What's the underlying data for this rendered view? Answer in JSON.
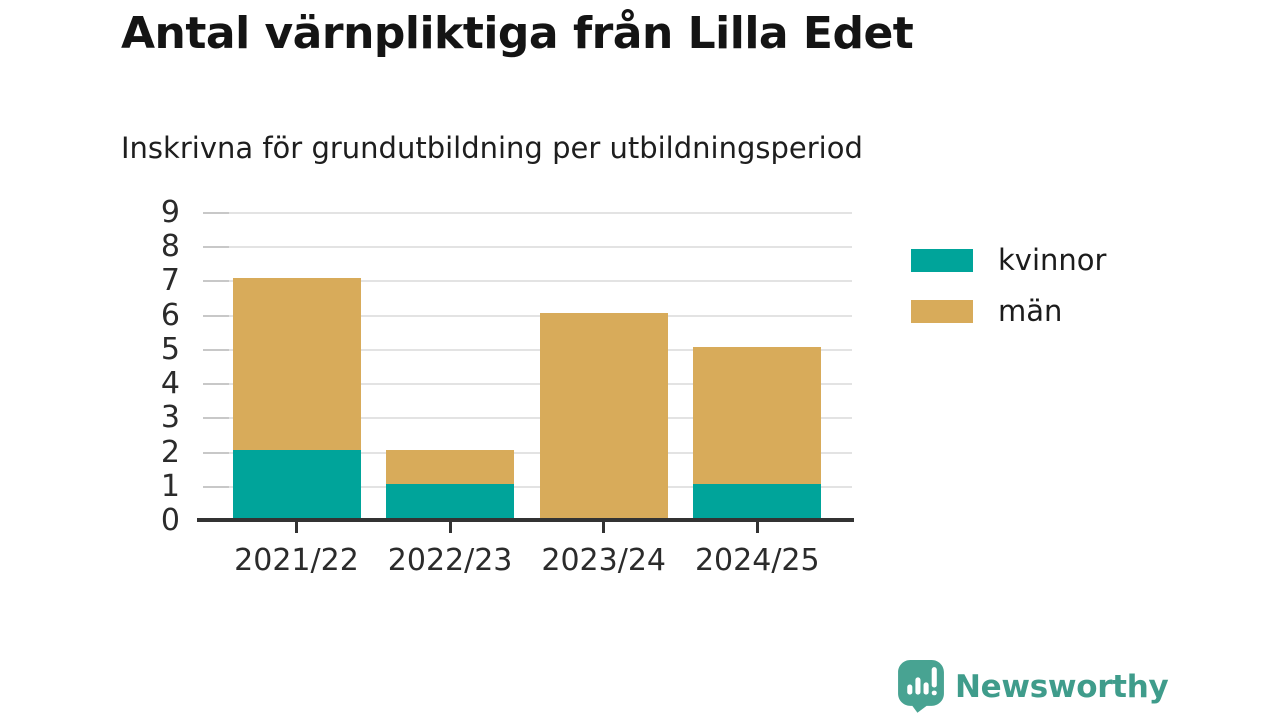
{
  "chart_data": {
    "type": "bar",
    "stacked": true,
    "title": "Antal värnpliktiga från Lilla Edet",
    "subtitle": "Inskrivna för grundutbildning per utbildningsperiod",
    "categories": [
      "2021/22",
      "2022/23",
      "2023/24",
      "2024/25"
    ],
    "series": [
      {
        "name": "kvinnor",
        "color": "#00a49a",
        "values": [
          2,
          1,
          0,
          1
        ]
      },
      {
        "name": "män",
        "color": "#d8ab5a",
        "values": [
          5,
          1,
          6,
          4
        ]
      }
    ],
    "totals": [
      7,
      2,
      6,
      5
    ],
    "xlabel": "",
    "ylabel": "",
    "ylim": [
      0,
      9
    ],
    "ytick_step": 1,
    "grid": "horizontal",
    "gridline_color": "#e3e3e3",
    "axis_line_color": "#333333",
    "legend_position": "right"
  },
  "branding": {
    "logo_text": "Newsworthy",
    "logo_text_color": "#3f9c8b",
    "logo_mark_color": "#48a392",
    "logo_icon": "newsworthy-chart-bubble-icon"
  }
}
